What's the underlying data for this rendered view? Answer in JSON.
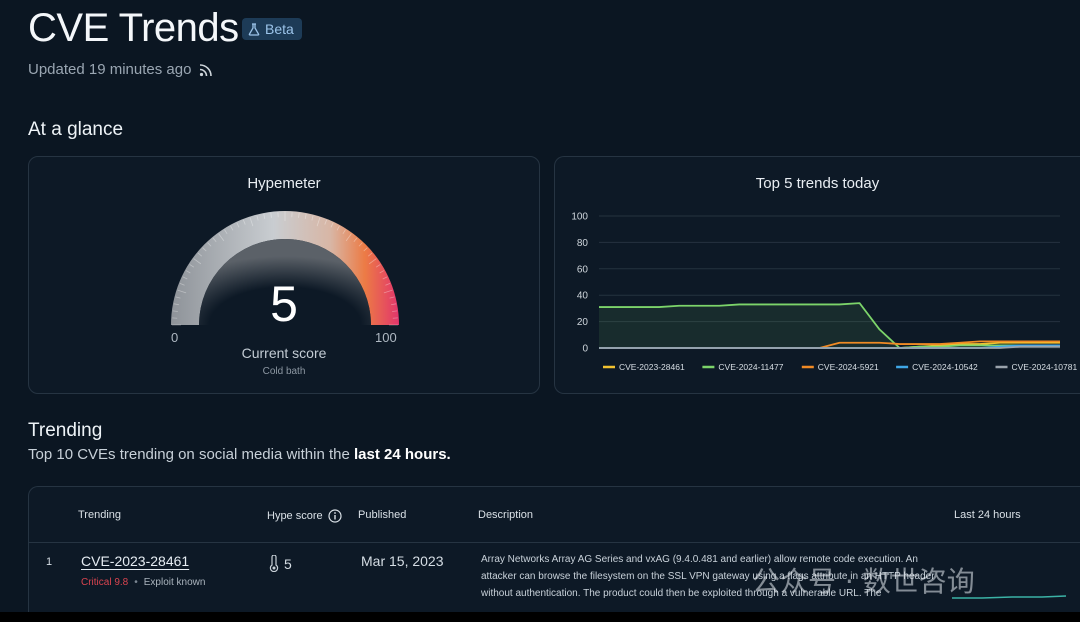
{
  "header": {
    "title": "CVE Trends",
    "beta_label": "Beta",
    "updated": "Updated 19 minutes ago",
    "rss_icon": "rss-icon",
    "beta_icon": "flask-icon"
  },
  "glance": {
    "section_title": "At a glance",
    "hypemeter": {
      "title": "Hypemeter",
      "score": "5",
      "score_value": 5,
      "min_label": "0",
      "max_label": "100",
      "score_label": "Current score",
      "status": "Cold bath"
    },
    "trends_chart_title": "Top 5 trends today"
  },
  "chart_data": {
    "type": "line",
    "title": "Top 5 trends today",
    "ylim": [
      0,
      100
    ],
    "yticks": [
      "100",
      "80",
      "60",
      "40",
      "20",
      "0"
    ],
    "grid": true,
    "legend_placement": "bottom",
    "x": [
      0,
      1,
      2,
      3,
      4,
      5,
      6,
      7,
      8,
      9,
      10,
      11,
      12,
      13,
      14,
      15,
      16,
      17,
      18,
      19,
      20,
      21,
      22,
      23
    ],
    "series": [
      {
        "name": "CVE-2023-28461",
        "color": "#f2c230",
        "values": [
          0,
          0,
          0,
          0,
          0,
          0,
          0,
          0,
          0,
          0,
          0,
          0,
          0,
          0,
          0,
          0,
          1,
          2,
          3,
          3,
          4,
          4,
          4,
          4
        ]
      },
      {
        "name": "CVE-2024-11477",
        "color": "#7cd46a",
        "values": [
          31,
          31,
          31,
          31,
          32,
          32,
          32,
          33,
          33,
          33,
          33,
          33,
          33,
          34,
          14,
          0,
          1,
          1,
          2,
          2,
          2,
          2,
          2,
          2
        ]
      },
      {
        "name": "CVE-2024-5921",
        "color": "#f08a24",
        "values": [
          0,
          0,
          0,
          0,
          0,
          0,
          0,
          0,
          0,
          0,
          0,
          0,
          4,
          4,
          4,
          3,
          3,
          3,
          4,
          5,
          5,
          5,
          5,
          5
        ]
      },
      {
        "name": "CVE-2024-10542",
        "color": "#3fa7e6",
        "values": [
          0,
          0,
          0,
          0,
          0,
          0,
          0,
          0,
          0,
          0,
          0,
          0,
          0,
          0,
          0,
          0,
          0,
          0,
          0,
          0,
          1,
          2,
          2,
          2
        ]
      },
      {
        "name": "CVE-2024-10781",
        "color": "#9aa3ac",
        "values": [
          0,
          0,
          0,
          0,
          0,
          0,
          0,
          0,
          0,
          0,
          0,
          0,
          0,
          0,
          0,
          0,
          0,
          0,
          0,
          0,
          0,
          1,
          1,
          1
        ]
      }
    ]
  },
  "trending": {
    "section_title": "Trending",
    "subtitle_prefix": "Top 10 CVEs trending on social media within the ",
    "subtitle_bold": "last 24 hours.",
    "columns": {
      "trending": "Trending",
      "hype_score": "Hype score",
      "published": "Published",
      "description": "Description",
      "last_24": "Last 24 hours"
    },
    "rows": [
      {
        "rank": "1",
        "cve": "CVE-2023-28461",
        "severity": "Critical 9.8",
        "separator": "•",
        "exploit": "Exploit known",
        "hype": "5",
        "published": "Mar 15, 2023",
        "description": "Array Networks Array AG Series and vxAG (9.4.0.481 and earlier) allow remote code execution. An attacker can browse the filesystem on the SSL VPN gateway using a flags attribute in an HTTP header without authentication. The product could then be exploited through a vulnerable URL. The"
      }
    ]
  },
  "watermark": {
    "text": "公众号 · 数世咨询"
  }
}
